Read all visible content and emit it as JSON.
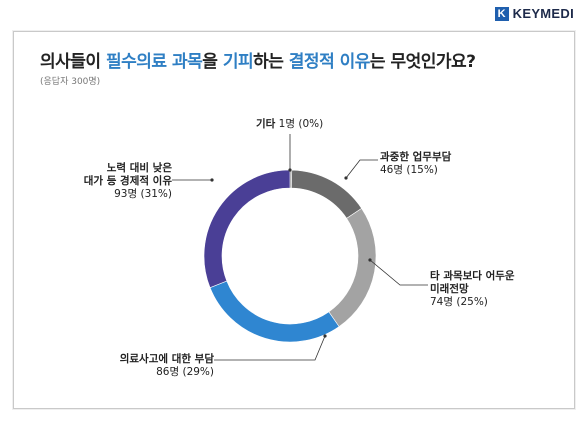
{
  "brand": {
    "mark": "K",
    "name": "KEYMEDI"
  },
  "chart_data": {
    "type": "pie",
    "title_parts": [
      {
        "text": "의사들이 ",
        "highlight": false
      },
      {
        "text": "필수의료 과목",
        "highlight": true
      },
      {
        "text": "을 ",
        "highlight": false
      },
      {
        "text": "기피",
        "highlight": true
      },
      {
        "text": "하는 ",
        "highlight": false
      },
      {
        "text": "결정적 이유",
        "highlight": true
      },
      {
        "text": "는 무엇인가요?",
        "highlight": false
      }
    ],
    "subtitle": "(응답자 300명)",
    "slices": [
      {
        "label": "기타",
        "count_label": "1명 (0%)",
        "value": 1,
        "color": "#8a8a8a"
      },
      {
        "label": "과중한 업무부담",
        "count_label": "46명 (15%)",
        "value": 46,
        "color": "#6b6b6b"
      },
      {
        "label": "타 과목보다 어두운 미래전망",
        "count_label": "74명 (25%)",
        "value": 74,
        "color": "#a3a3a3"
      },
      {
        "label": "의료사고에 대한 부담",
        "count_label": "86명 (29%)",
        "value": 86,
        "color": "#2f86d1"
      },
      {
        "label": "노력 대비 낮은 대가 등 경제적 이유",
        "count_label": "93명 (31%)",
        "value": 93,
        "color": "#4a3f96"
      }
    ],
    "highlight_color": "#2f7fc4"
  }
}
